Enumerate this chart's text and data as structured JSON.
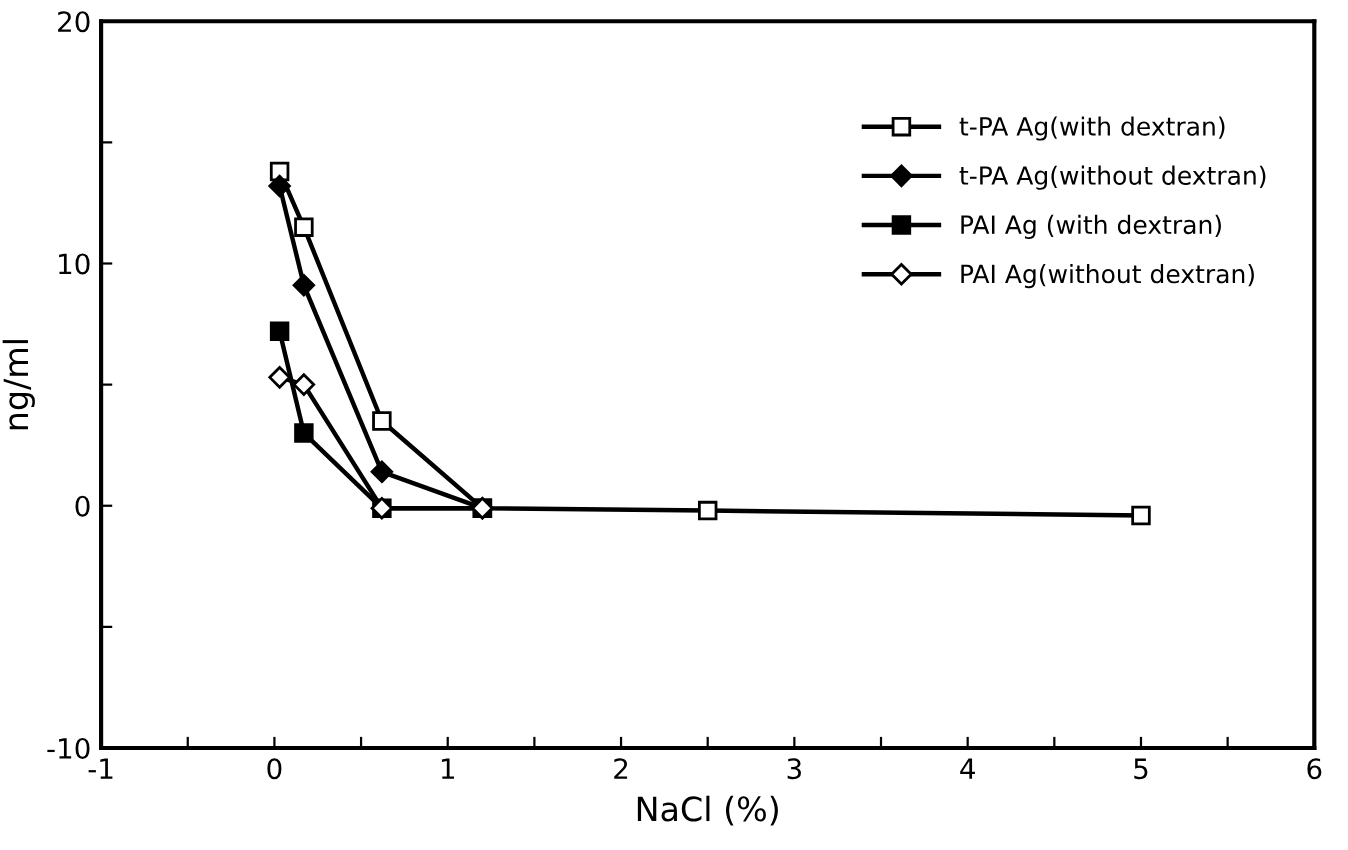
{
  "chart_data": {
    "type": "line",
    "xlabel": "NaCl (%)",
    "ylabel": "ng/ml",
    "xlim": [
      -1,
      6
    ],
    "ylim": [
      -10,
      20
    ],
    "xticks": [
      -1,
      {
        "value": -0.5,
        "label": null
      },
      0,
      {
        "value": 0.5,
        "label": null
      },
      1,
      {
        "value": 1.5,
        "label": null
      },
      2,
      {
        "value": 2.5,
        "label": null
      },
      3,
      {
        "value": 3.5,
        "label": null
      },
      4,
      {
        "value": 4.5,
        "label": null
      },
      5,
      {
        "value": 5.5,
        "label": null
      },
      6
    ],
    "yticks": [
      -10,
      {
        "value": -5,
        "label": null
      },
      0,
      {
        "value": 5,
        "label": null
      },
      10,
      {
        "value": 15,
        "label": null
      },
      20
    ],
    "grid": false,
    "legend": "top right",
    "series": [
      {
        "name": "t-PA Ag(with dextran)",
        "color": "#000000",
        "marker": "square_open",
        "x": [
          0.03,
          0.17,
          0.62,
          1.2,
          2.5,
          5.0
        ],
        "values": [
          13.8,
          11.5,
          3.5,
          -0.1,
          -0.2,
          -0.4
        ]
      },
      {
        "name": "t-PA Ag(without dextran)",
        "color": "#000000",
        "marker": "diamond",
        "x": [
          0.03,
          0.17,
          0.62,
          1.2
        ],
        "values": [
          13.2,
          9.1,
          1.4,
          -0.1
        ]
      },
      {
        "name": "PAI Ag (with dextran)",
        "color": "#000000",
        "marker": "square",
        "x": [
          0.03,
          0.17,
          0.62,
          1.2
        ],
        "values": [
          7.2,
          3.0,
          -0.1,
          -0.1
        ]
      },
      {
        "name": "PAI Ag(without dextran)",
        "color": "#000000",
        "marker": "diamond_open",
        "x": [
          0.03,
          0.17,
          0.62,
          1.2
        ],
        "values": [
          5.3,
          5.0,
          -0.1,
          -0.1
        ]
      }
    ]
  }
}
